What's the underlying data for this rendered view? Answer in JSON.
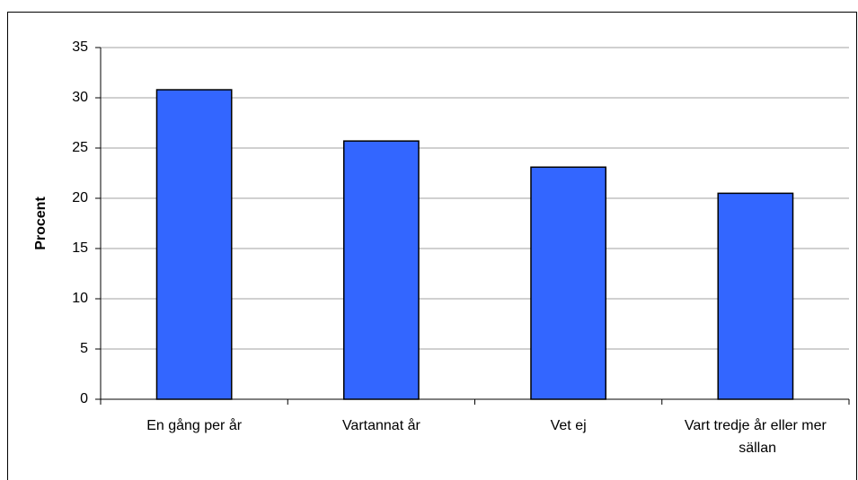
{
  "chart_data": {
    "type": "bar",
    "y_label": "Procent",
    "categories": [
      "En gång per år",
      "Vartannat år",
      "Vet ej",
      "Vart tredje år eller mer sällan"
    ],
    "values": [
      30.8,
      25.7,
      23.1,
      20.5
    ],
    "color": "#3366ff",
    "ylim": [
      0,
      35
    ],
    "yticks": [
      0,
      5,
      10,
      15,
      20,
      25,
      30,
      35
    ],
    "grid": true
  }
}
